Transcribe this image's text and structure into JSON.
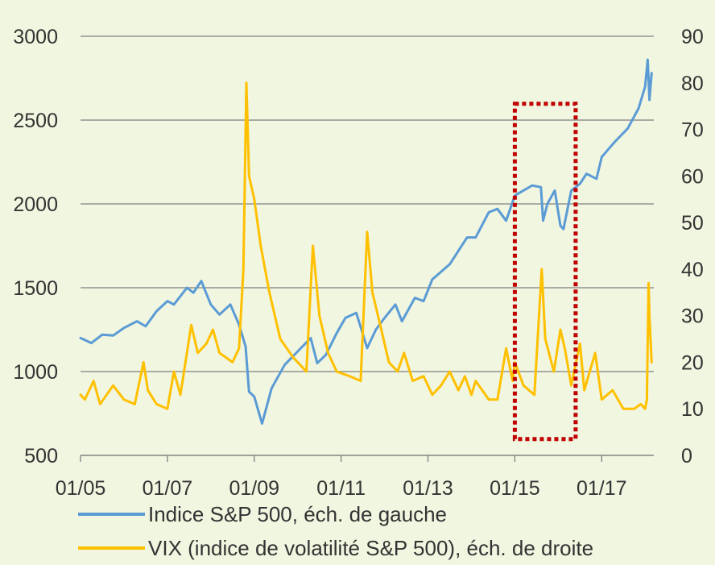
{
  "chart_data": {
    "type": "line",
    "title": "",
    "xlabel": "",
    "ylabel_left": "",
    "ylabel_right": "",
    "x_ticks": [
      "01/05",
      "01/07",
      "01/09",
      "01/11",
      "01/13",
      "01/15",
      "01/17"
    ],
    "x_range": [
      2005.0,
      2018.2
    ],
    "y_left_ticks": [
      "500",
      "1000",
      "1500",
      "2000",
      "2500",
      "3000"
    ],
    "y_left_range": [
      500,
      3000
    ],
    "y_right_ticks": [
      "0",
      "10",
      "20",
      "30",
      "40",
      "50",
      "60",
      "70",
      "80",
      "90"
    ],
    "y_right_range": [
      0,
      90
    ],
    "grid": "horizontal",
    "legend_position": "bottom",
    "series": [
      {
        "name": "Indice S&P 500, éch. de gauche",
        "axis": "left",
        "color": "#5b9bd5",
        "points": [
          [
            2005.0,
            1200
          ],
          [
            2005.25,
            1170
          ],
          [
            2005.5,
            1220
          ],
          [
            2005.75,
            1215
          ],
          [
            2006.0,
            1260
          ],
          [
            2006.3,
            1300
          ],
          [
            2006.5,
            1270
          ],
          [
            2006.75,
            1360
          ],
          [
            2007.0,
            1420
          ],
          [
            2007.15,
            1400
          ],
          [
            2007.45,
            1500
          ],
          [
            2007.6,
            1470
          ],
          [
            2007.78,
            1540
          ],
          [
            2008.0,
            1400
          ],
          [
            2008.2,
            1340
          ],
          [
            2008.45,
            1400
          ],
          [
            2008.65,
            1280
          ],
          [
            2008.8,
            1150
          ],
          [
            2008.88,
            880
          ],
          [
            2009.0,
            850
          ],
          [
            2009.1,
            760
          ],
          [
            2009.18,
            690
          ],
          [
            2009.4,
            900
          ],
          [
            2009.7,
            1040
          ],
          [
            2010.0,
            1120
          ],
          [
            2010.3,
            1200
          ],
          [
            2010.45,
            1050
          ],
          [
            2010.65,
            1100
          ],
          [
            2010.9,
            1230
          ],
          [
            2011.1,
            1320
          ],
          [
            2011.35,
            1350
          ],
          [
            2011.6,
            1140
          ],
          [
            2011.8,
            1250
          ],
          [
            2012.0,
            1320
          ],
          [
            2012.25,
            1400
          ],
          [
            2012.4,
            1300
          ],
          [
            2012.7,
            1440
          ],
          [
            2012.9,
            1420
          ],
          [
            2013.1,
            1550
          ],
          [
            2013.5,
            1640
          ],
          [
            2013.9,
            1800
          ],
          [
            2014.1,
            1800
          ],
          [
            2014.4,
            1950
          ],
          [
            2014.6,
            1970
          ],
          [
            2014.8,
            1900
          ],
          [
            2015.0,
            2050
          ],
          [
            2015.4,
            2110
          ],
          [
            2015.6,
            2100
          ],
          [
            2015.65,
            1900
          ],
          [
            2015.75,
            2000
          ],
          [
            2015.92,
            2080
          ],
          [
            2016.05,
            1870
          ],
          [
            2016.12,
            1850
          ],
          [
            2016.3,
            2080
          ],
          [
            2016.5,
            2120
          ],
          [
            2016.65,
            2180
          ],
          [
            2016.88,
            2150
          ],
          [
            2017.0,
            2280
          ],
          [
            2017.3,
            2370
          ],
          [
            2017.6,
            2450
          ],
          [
            2017.85,
            2570
          ],
          [
            2018.0,
            2700
          ],
          [
            2018.06,
            2860
          ],
          [
            2018.1,
            2620
          ],
          [
            2018.15,
            2780
          ]
        ]
      },
      {
        "name": "VIX (indice de volatilité S&P 500), éch. de droite",
        "axis": "right",
        "color": "#ffc000",
        "points": [
          [
            2005.0,
            13
          ],
          [
            2005.1,
            12
          ],
          [
            2005.3,
            16
          ],
          [
            2005.45,
            11
          ],
          [
            2005.75,
            15
          ],
          [
            2006.0,
            12
          ],
          [
            2006.25,
            11
          ],
          [
            2006.45,
            20
          ],
          [
            2006.55,
            14
          ],
          [
            2006.75,
            11
          ],
          [
            2007.0,
            10
          ],
          [
            2007.15,
            18
          ],
          [
            2007.3,
            13
          ],
          [
            2007.55,
            28
          ],
          [
            2007.7,
            22
          ],
          [
            2007.9,
            24
          ],
          [
            2008.05,
            27
          ],
          [
            2008.2,
            22
          ],
          [
            2008.5,
            20
          ],
          [
            2008.65,
            23
          ],
          [
            2008.75,
            40
          ],
          [
            2008.82,
            80
          ],
          [
            2008.88,
            60
          ],
          [
            2009.0,
            55
          ],
          [
            2009.15,
            45
          ],
          [
            2009.35,
            35
          ],
          [
            2009.6,
            25
          ],
          [
            2009.9,
            21
          ],
          [
            2010.1,
            19
          ],
          [
            2010.2,
            18
          ],
          [
            2010.35,
            45
          ],
          [
            2010.5,
            30
          ],
          [
            2010.7,
            22
          ],
          [
            2010.9,
            18
          ],
          [
            2011.2,
            17
          ],
          [
            2011.45,
            16
          ],
          [
            2011.6,
            48
          ],
          [
            2011.72,
            35
          ],
          [
            2011.9,
            28
          ],
          [
            2012.1,
            20
          ],
          [
            2012.3,
            18
          ],
          [
            2012.45,
            22
          ],
          [
            2012.65,
            16
          ],
          [
            2012.9,
            17
          ],
          [
            2013.1,
            13
          ],
          [
            2013.3,
            15
          ],
          [
            2013.5,
            18
          ],
          [
            2013.7,
            14
          ],
          [
            2013.85,
            17
          ],
          [
            2014.0,
            13
          ],
          [
            2014.1,
            16
          ],
          [
            2014.4,
            12
          ],
          [
            2014.6,
            12
          ],
          [
            2014.8,
            23
          ],
          [
            2014.95,
            16
          ],
          [
            2015.0,
            20
          ],
          [
            2015.2,
            15
          ],
          [
            2015.45,
            13
          ],
          [
            2015.62,
            40
          ],
          [
            2015.7,
            25
          ],
          [
            2015.9,
            18
          ],
          [
            2016.05,
            27
          ],
          [
            2016.15,
            23
          ],
          [
            2016.3,
            15
          ],
          [
            2016.5,
            24
          ],
          [
            2016.6,
            14
          ],
          [
            2016.85,
            22
          ],
          [
            2017.0,
            12
          ],
          [
            2017.25,
            14
          ],
          [
            2017.5,
            10
          ],
          [
            2017.75,
            10
          ],
          [
            2017.9,
            11
          ],
          [
            2018.0,
            10
          ],
          [
            2018.04,
            12
          ],
          [
            2018.08,
            37
          ],
          [
            2018.1,
            30
          ],
          [
            2018.15,
            20
          ]
        ]
      }
    ],
    "annotation": {
      "shape": "dashed-rectangle",
      "color": "#c00000",
      "x_range": [
        2015.0,
        2016.4
      ],
      "y_right_range": [
        3.5,
        75.5
      ]
    }
  }
}
